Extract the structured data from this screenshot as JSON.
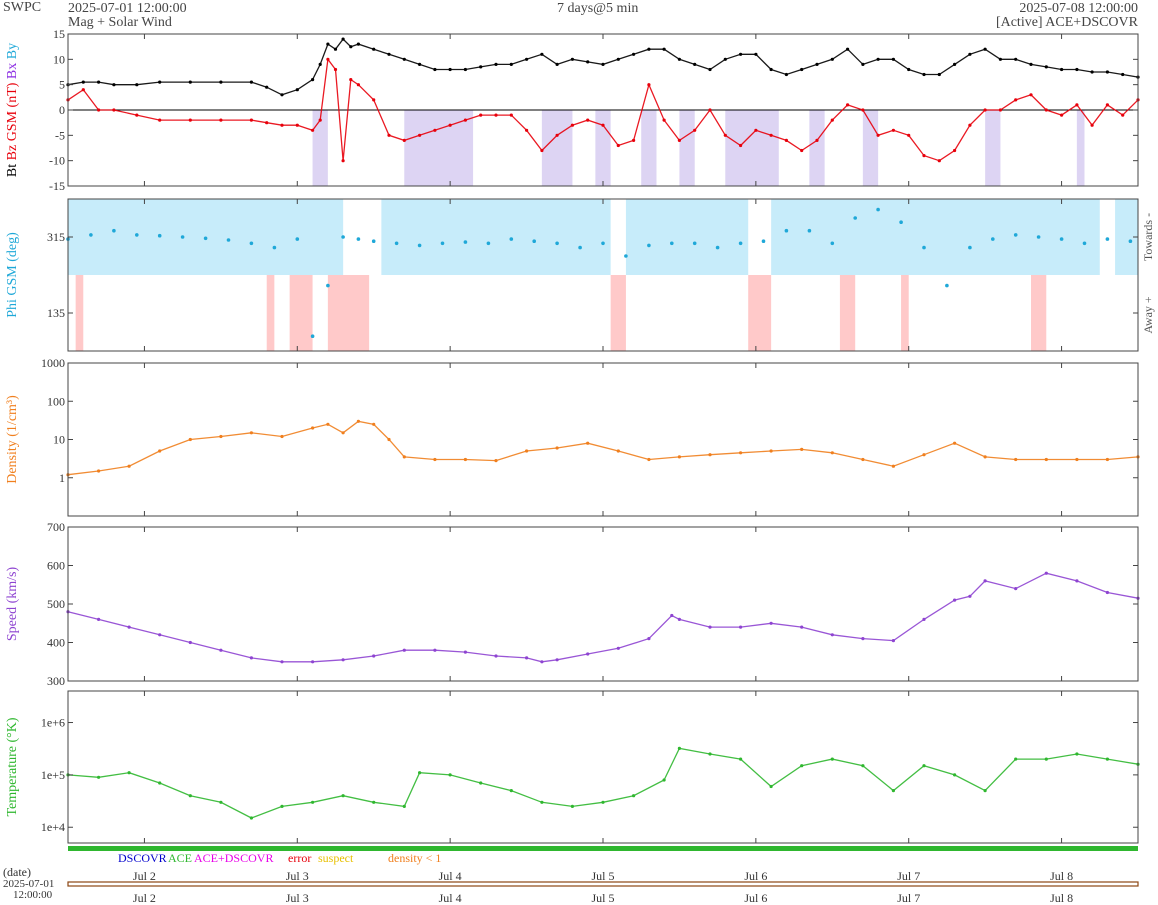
{
  "header": {
    "source": "SWPC",
    "start_time": "2025-07-01 12:00:00",
    "subtitle": "Mag + Solar Wind",
    "span": "7 days@5 min",
    "end_time": "2025-07-08 12:00:00",
    "spacecraft": "[Active] ACE+DSCOVR"
  },
  "colors": {
    "bt": "#000000",
    "bz": "#e8000b",
    "bx": "#8a2be2",
    "by": "#1fa8d8",
    "phi": "#1fa8d8",
    "towards_band": "#c7ecfa",
    "away_band": "#ffc9c9",
    "southward_band": "#ddd4f3",
    "density": "#f07f1e",
    "speed": "#8e44d1",
    "temperature": "#2fb72f",
    "dscovr": "#0000cc",
    "ace": "#2fb72f",
    "ace_dscovr": "#e800e8",
    "error": "#e8000b",
    "suspect": "#e8c000",
    "density_lt_1": "#f07f1e"
  },
  "chart_data": [
    {
      "type": "line",
      "panel": "mag",
      "ylabel_parts": [
        "Bt",
        "Bz GSM (nT)",
        "Bx",
        "By"
      ],
      "ylim": [
        -15,
        15
      ],
      "yticks": [
        -15,
        -10,
        -5,
        0,
        5,
        10,
        15
      ],
      "zero_line": true,
      "x_days": [
        0,
        0.1,
        0.2,
        0.3,
        0.45,
        0.6,
        0.8,
        1.0,
        1.2,
        1.3,
        1.4,
        1.5,
        1.6,
        1.65,
        1.7,
        1.75,
        1.8,
        1.85,
        1.9,
        2.0,
        2.1,
        2.2,
        2.3,
        2.4,
        2.5,
        2.6,
        2.7,
        2.8,
        2.9,
        3.0,
        3.1,
        3.2,
        3.3,
        3.4,
        3.5,
        3.6,
        3.7,
        3.8,
        3.9,
        4.0,
        4.1,
        4.2,
        4.3,
        4.4,
        4.5,
        4.6,
        4.7,
        4.8,
        4.9,
        5.0,
        5.1,
        5.2,
        5.3,
        5.4,
        5.5,
        5.6,
        5.7,
        5.8,
        5.9,
        6.0,
        6.1,
        6.2,
        6.3,
        6.4,
        6.5,
        6.6,
        6.7,
        6.8,
        6.9,
        7.0
      ],
      "series": [
        {
          "name": "Bt",
          "values": [
            5,
            5.5,
            5.5,
            5,
            5,
            5.5,
            5.5,
            5.5,
            5.5,
            4.5,
            3,
            4,
            6,
            9,
            13,
            12,
            14,
            12.5,
            13,
            12,
            11,
            10,
            9,
            8,
            8,
            8,
            8.5,
            9,
            9,
            10,
            11,
            9,
            10,
            9.5,
            9,
            10,
            11,
            12,
            12,
            10,
            9,
            8,
            10,
            11,
            11,
            8,
            7,
            8,
            9,
            10,
            12,
            9,
            10,
            10,
            8,
            7,
            7,
            9,
            11,
            12,
            10,
            10,
            9,
            8.5,
            8,
            8,
            7.5,
            7.5,
            7,
            6.5
          ]
        },
        {
          "name": "Bz GSM (nT)",
          "values": [
            2,
            4,
            0,
            0,
            -1,
            -2,
            -2,
            -2,
            -2,
            -2.5,
            -3,
            -3,
            -4,
            -2,
            10,
            8,
            -10,
            6,
            5,
            2,
            -5,
            -6,
            -5,
            -4,
            -3,
            -2,
            -1,
            -1,
            -1,
            -4,
            -8,
            -5,
            -3,
            -2,
            -3,
            -7,
            -6,
            5,
            -2,
            -6,
            -4,
            0,
            -5,
            -7,
            -4,
            -5,
            -6,
            -8,
            -6,
            -2,
            1,
            0,
            -5,
            -4,
            -5,
            -9,
            -10,
            -8,
            -3,
            0,
            0,
            2,
            3,
            0,
            -1,
            1,
            -3,
            1,
            -1,
            2
          ]
        }
      ],
      "southward_intervals": [
        [
          1.6,
          1.7
        ],
        [
          2.2,
          2.65
        ],
        [
          3.1,
          3.3
        ],
        [
          3.45,
          3.55
        ],
        [
          3.75,
          3.85
        ],
        [
          4.0,
          4.1
        ],
        [
          4.3,
          4.65
        ],
        [
          4.85,
          4.95
        ],
        [
          5.2,
          5.3
        ],
        [
          6.0,
          6.1
        ],
        [
          6.6,
          6.65
        ]
      ]
    },
    {
      "type": "scatter",
      "panel": "phi",
      "ylabel": "Phi GSM (deg)",
      "ylim": [
        45,
        405
      ],
      "yticks": [
        135,
        315
      ],
      "towards_label": "Towards -",
      "away_label": "Away +",
      "x_days": [
        0,
        0.15,
        0.3,
        0.45,
        0.6,
        0.75,
        0.9,
        1.05,
        1.2,
        1.35,
        1.5,
        1.6,
        1.7,
        1.8,
        1.9,
        2.0,
        2.15,
        2.3,
        2.45,
        2.6,
        2.75,
        2.9,
        3.05,
        3.2,
        3.35,
        3.5,
        3.65,
        3.8,
        3.95,
        4.1,
        4.25,
        4.4,
        4.55,
        4.7,
        4.85,
        5.0,
        5.15,
        5.3,
        5.45,
        5.6,
        5.75,
        5.9,
        6.05,
        6.2,
        6.35,
        6.5,
        6.65,
        6.8,
        6.95
      ],
      "values": [
        310,
        320,
        330,
        320,
        318,
        315,
        312,
        308,
        300,
        290,
        310,
        80,
        200,
        315,
        310,
        305,
        300,
        295,
        300,
        303,
        300,
        310,
        305,
        300,
        290,
        300,
        270,
        295,
        300,
        300,
        290,
        300,
        305,
        330,
        330,
        300,
        360,
        380,
        350,
        290,
        200,
        290,
        310,
        320,
        315,
        310,
        300,
        310,
        305
      ],
      "towards_intervals": [
        [
          0,
          1.8
        ],
        [
          2.05,
          3.55
        ],
        [
          3.65,
          4.45
        ],
        [
          4.6,
          6.75
        ],
        [
          6.85,
          7.0
        ]
      ],
      "away_intervals": [
        [
          0.05,
          0.1
        ],
        [
          1.3,
          1.35
        ],
        [
          1.45,
          1.6
        ],
        [
          1.7,
          1.97
        ],
        [
          3.55,
          3.65
        ],
        [
          4.45,
          4.6
        ],
        [
          5.05,
          5.15
        ],
        [
          5.45,
          5.5
        ],
        [
          6.3,
          6.4
        ]
      ]
    },
    {
      "type": "line",
      "panel": "density",
      "ylabel": "Density (1/cm³)",
      "yscale": "log",
      "ylim": [
        0.1,
        1000
      ],
      "yticks": [
        1,
        10,
        100,
        1000
      ],
      "ytick_labels": [
        "1",
        "10",
        "100",
        "1000"
      ],
      "x_days": [
        0,
        0.2,
        0.4,
        0.6,
        0.8,
        1.0,
        1.2,
        1.4,
        1.6,
        1.7,
        1.8,
        1.9,
        2.0,
        2.1,
        2.2,
        2.4,
        2.6,
        2.8,
        3.0,
        3.2,
        3.4,
        3.6,
        3.8,
        4.0,
        4.2,
        4.4,
        4.6,
        4.8,
        5.0,
        5.2,
        5.4,
        5.6,
        5.8,
        6.0,
        6.2,
        6.4,
        6.6,
        6.8,
        7.0
      ],
      "series": [
        {
          "name": "Density",
          "values": [
            1.2,
            1.5,
            2,
            5,
            10,
            12,
            15,
            12,
            20,
            25,
            15,
            30,
            25,
            10,
            3.5,
            3,
            3,
            2.8,
            5,
            6,
            8,
            5,
            3,
            3.5,
            4,
            4.5,
            5,
            5.5,
            4.5,
            3,
            2,
            4,
            8,
            3.5,
            3,
            3,
            3,
            3,
            3.5
          ]
        }
      ]
    },
    {
      "type": "line",
      "panel": "speed",
      "ylabel": "Speed (km/s)",
      "ylim": [
        300,
        700
      ],
      "yticks": [
        300,
        400,
        500,
        600,
        700
      ],
      "x_days": [
        0,
        0.2,
        0.4,
        0.6,
        0.8,
        1.0,
        1.2,
        1.4,
        1.6,
        1.8,
        2.0,
        2.2,
        2.4,
        2.6,
        2.8,
        3.0,
        3.1,
        3.2,
        3.4,
        3.6,
        3.8,
        3.95,
        4.0,
        4.2,
        4.4,
        4.6,
        4.8,
        5.0,
        5.2,
        5.4,
        5.6,
        5.8,
        5.9,
        6.0,
        6.2,
        6.4,
        6.6,
        6.8,
        7.0
      ],
      "series": [
        {
          "name": "Speed",
          "values": [
            480,
            460,
            440,
            420,
            400,
            380,
            360,
            350,
            350,
            355,
            365,
            380,
            380,
            375,
            365,
            360,
            350,
            355,
            370,
            385,
            410,
            470,
            460,
            440,
            440,
            450,
            440,
            420,
            410,
            405,
            460,
            510,
            520,
            560,
            540,
            580,
            560,
            530,
            515
          ]
        }
      ]
    },
    {
      "type": "line",
      "panel": "temperature",
      "ylabel": "Temperature (°K)",
      "yscale": "log",
      "ylim": [
        5000,
        4000000
      ],
      "yticks": [
        10000,
        100000,
        1000000
      ],
      "ytick_labels": [
        "1e+4",
        "1e+5",
        "1e+6"
      ],
      "x_days": [
        0,
        0.2,
        0.4,
        0.6,
        0.8,
        1.0,
        1.2,
        1.4,
        1.6,
        1.8,
        2.0,
        2.2,
        2.3,
        2.5,
        2.7,
        2.9,
        3.1,
        3.3,
        3.5,
        3.7,
        3.9,
        4.0,
        4.2,
        4.4,
        4.6,
        4.8,
        5.0,
        5.2,
        5.4,
        5.6,
        5.8,
        6.0,
        6.2,
        6.4,
        6.6,
        6.8,
        7.0
      ],
      "series": [
        {
          "name": "Temperature",
          "values": [
            100000,
            90000,
            110000,
            70000,
            40000,
            30000,
            15000,
            25000,
            30000,
            40000,
            30000,
            25000,
            110000,
            100000,
            70000,
            50000,
            30000,
            25000,
            30000,
            40000,
            80000,
            320000,
            250000,
            200000,
            60000,
            150000,
            200000,
            150000,
            50000,
            150000,
            100000,
            50000,
            200000,
            200000,
            250000,
            200000,
            160000
          ]
        }
      ]
    },
    {
      "type": "table",
      "panel": "source_legend",
      "items": [
        "DSCOVR",
        "ACE",
        "ACE+DSCOVR",
        "error",
        "suspect",
        "density < 1"
      ]
    }
  ],
  "x_axis": {
    "label": "(date)",
    "start_date": "2025-07-01",
    "start_clock": "12:00:00",
    "ticks": [
      "Jul 2",
      "Jul 3",
      "Jul 4",
      "Jul 5",
      "Jul 6",
      "Jul 7",
      "Jul 8"
    ],
    "tick_days": [
      0.5,
      1.5,
      2.5,
      3.5,
      4.5,
      5.5,
      6.5
    ]
  }
}
